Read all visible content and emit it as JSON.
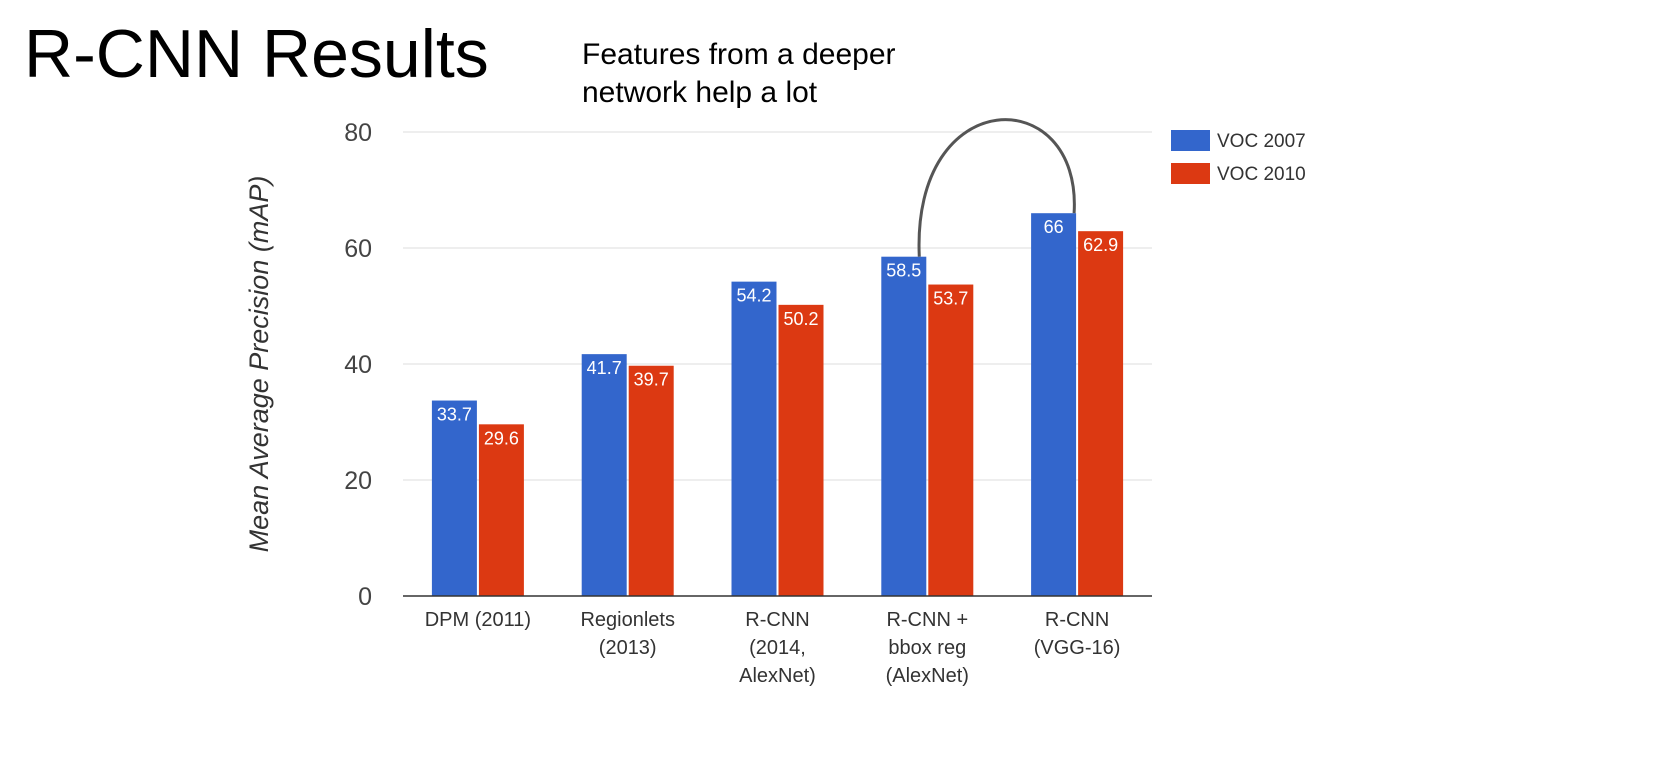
{
  "slide": {
    "title": "R-CNN Results",
    "callout_lines": [
      "Features from a deeper",
      "network help a lot"
    ]
  },
  "colors": {
    "voc2007": "#3366cc",
    "voc2010": "#dc3912",
    "grid": "#dddddd",
    "axis": "#333333",
    "arc": "#555555"
  },
  "chart_data": {
    "type": "bar",
    "title": "",
    "xlabel": "",
    "ylabel": "Mean Average Precision (mAP)",
    "ylim": [
      0,
      80
    ],
    "yticks": [
      "0",
      "20",
      "40",
      "60",
      "80"
    ],
    "grid": true,
    "legend_position": "top-right",
    "categories": [
      [
        "DPM (2011)"
      ],
      [
        "Regionlets",
        "(2013)"
      ],
      [
        "R-CNN",
        "(2014,",
        "AlexNet)"
      ],
      [
        "R-CNN +",
        "bbox reg",
        "(AlexNet)"
      ],
      [
        "R-CNN",
        "(VGG-16)"
      ]
    ],
    "series": [
      {
        "name": "VOC 2007",
        "values": [
          33.7,
          41.7,
          54.2,
          58.5,
          66
        ],
        "labels": [
          "33.7",
          "41.7",
          "54.2",
          "58.5",
          "66"
        ]
      },
      {
        "name": "VOC 2010",
        "values": [
          29.6,
          39.7,
          50.2,
          53.7,
          62.9
        ],
        "labels": [
          "29.6",
          "39.7",
          "50.2",
          "53.7",
          "62.9"
        ]
      }
    ],
    "annotation": {
      "type": "arc",
      "from_category": 3,
      "to_category": 4,
      "series": 0
    }
  }
}
